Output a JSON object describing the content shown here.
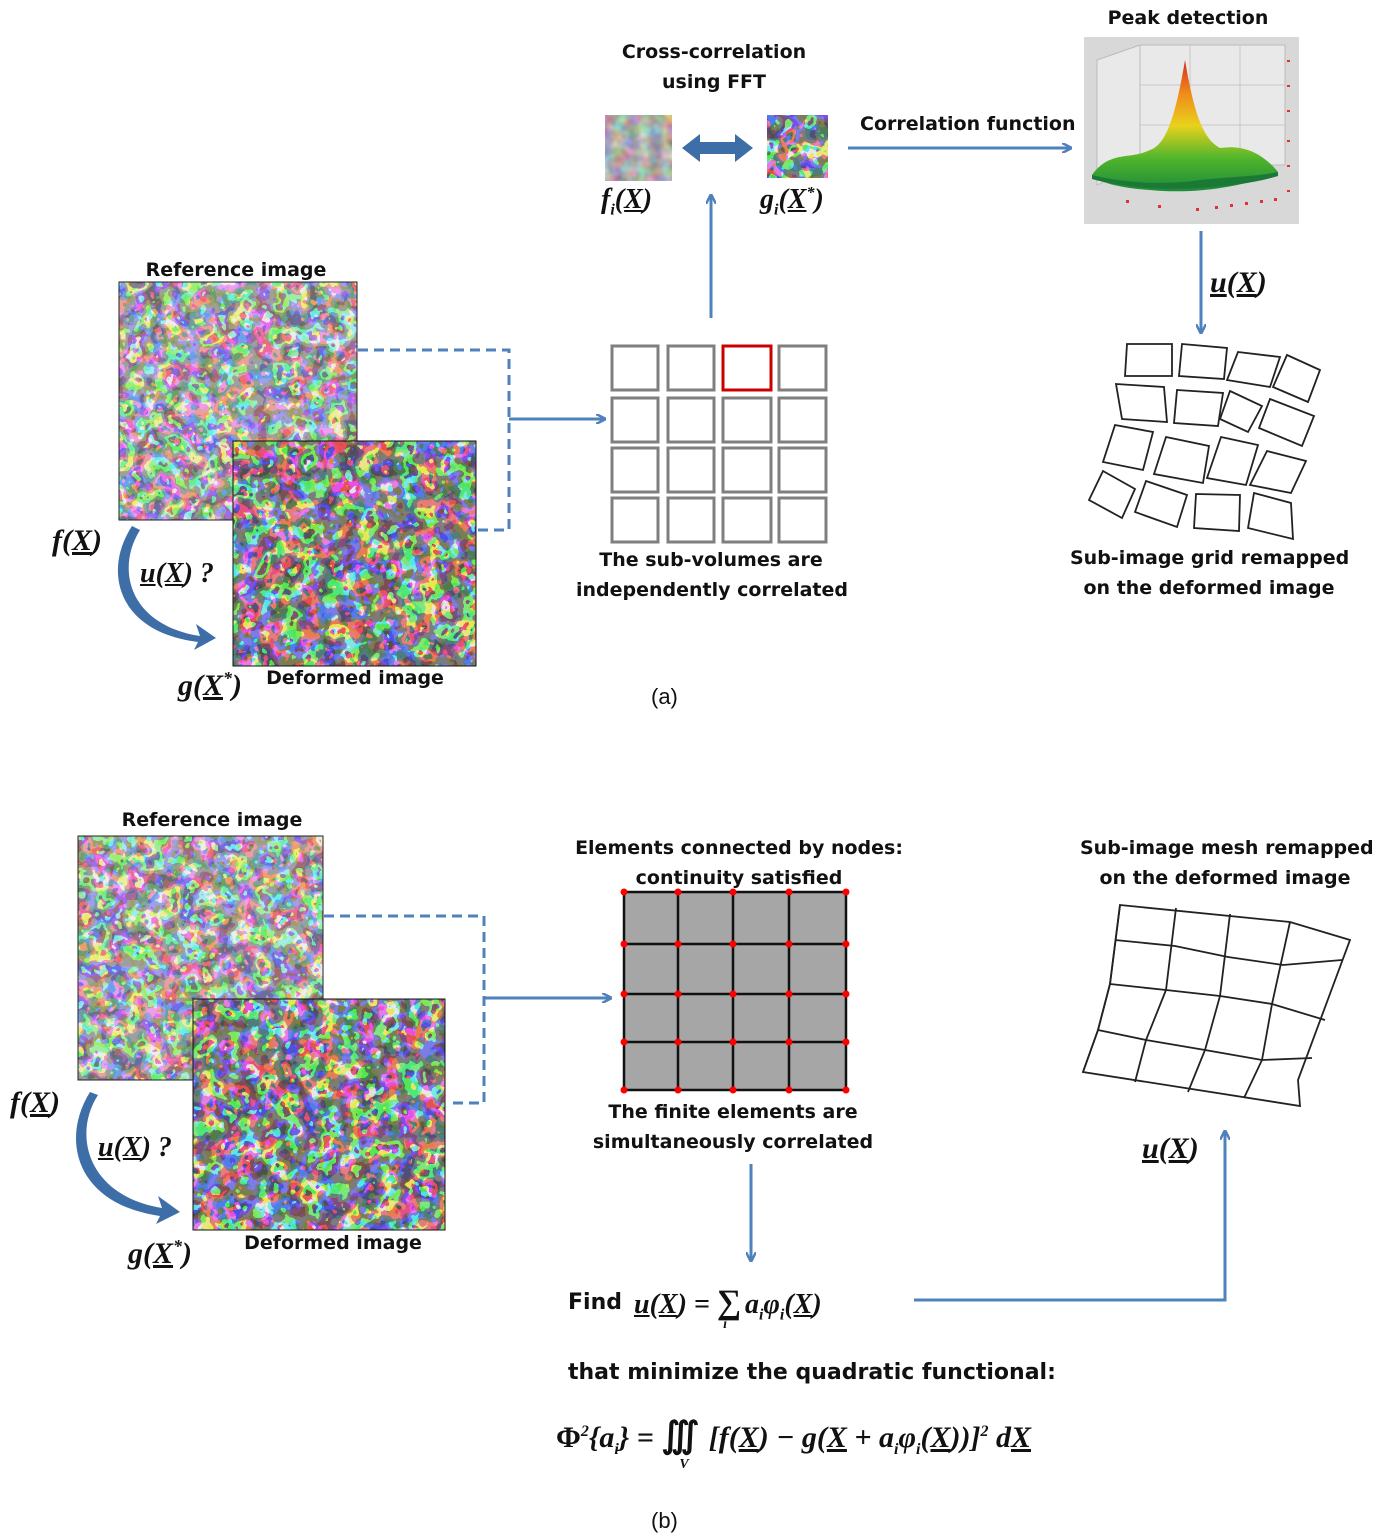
{
  "panel_a": {
    "caption": "(a)",
    "reference_label": "Reference image",
    "deformed_label": "Deformed image",
    "cross_correlation_label": [
      "Cross-correlation",
      "using FFT"
    ],
    "correlation_function_label": "Correlation function",
    "peak_detection_label": "Peak detection",
    "subvolumes_label": [
      "The sub-volumes are",
      "independently correlated"
    ],
    "remapped_label": [
      "Sub-image grid remapped",
      "on the deformed image"
    ],
    "f_label": "f(X)",
    "g_label": "g(X*)",
    "u_question": "u(X) ?",
    "u_label": "u(X)",
    "fi_label": "fi(X)",
    "gi_label": "gi(X*)"
  },
  "panel_b": {
    "caption": "(b)",
    "reference_label": "Reference image",
    "deformed_label": "Deformed image",
    "elements_label": [
      "Elements connected by nodes:",
      "continuity satisfied"
    ],
    "finite_label": [
      "The finite elements are",
      "simultaneously correlated"
    ],
    "mesh_label": [
      "Sub-image mesh remapped",
      "on the deformed image"
    ],
    "find_word": "Find",
    "minimize_label": "that minimize the quadratic functional:",
    "f_label": "f(X)",
    "g_label": "g(X*)",
    "u_question": "u(X) ?",
    "u_label": "u(X)"
  },
  "colors": {
    "arrow": "#4f81bd",
    "dashed": "#4f81bd",
    "highlight": "#cc0000",
    "node": "#ff0000",
    "element_fill": "#a6a6a6",
    "curved_arrow": "#3e6ea8"
  }
}
